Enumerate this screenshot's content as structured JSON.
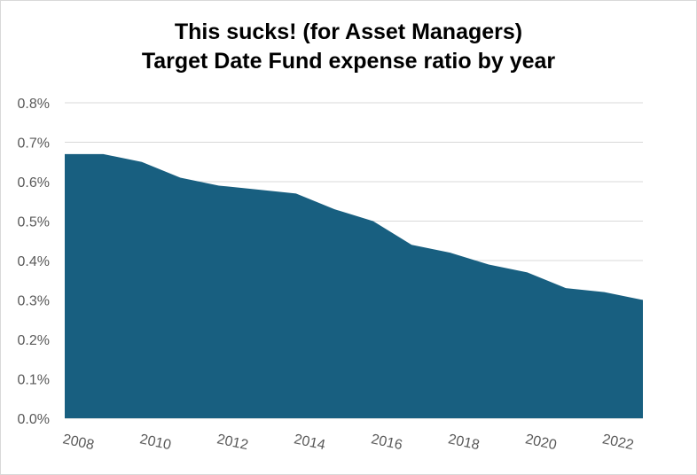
{
  "title_line1": "This sucks! (for Asset Managers)",
  "title_line2": "Target Date Fund expense ratio by year",
  "chart_data": {
    "type": "area",
    "title": "This sucks! (for Asset Managers)\nTarget Date Fund expense ratio by year",
    "xlabel": "",
    "ylabel": "",
    "x": [
      2008,
      2009,
      2010,
      2011,
      2012,
      2013,
      2014,
      2015,
      2016,
      2017,
      2018,
      2019,
      2020,
      2021,
      2022,
      2023
    ],
    "series": [
      {
        "values": [
          0.67,
          0.67,
          0.65,
          0.61,
          0.59,
          0.58,
          0.57,
          0.53,
          0.5,
          0.44,
          0.42,
          0.39,
          0.37,
          0.33,
          0.32,
          0.3
        ]
      }
    ],
    "ylim": [
      0,
      0.8
    ],
    "y_ticks": [
      "0.0%",
      "0.1%",
      "0.2%",
      "0.3%",
      "0.4%",
      "0.5%",
      "0.6%",
      "0.7%",
      "0.8%"
    ],
    "x_ticks": [
      "2008",
      "2010",
      "2012",
      "2014",
      "2016",
      "2018",
      "2020",
      "2022"
    ],
    "grid": "horizontal",
    "legend": "none",
    "fill_color": "#185f80",
    "grid_color": "#d9d9d9"
  }
}
